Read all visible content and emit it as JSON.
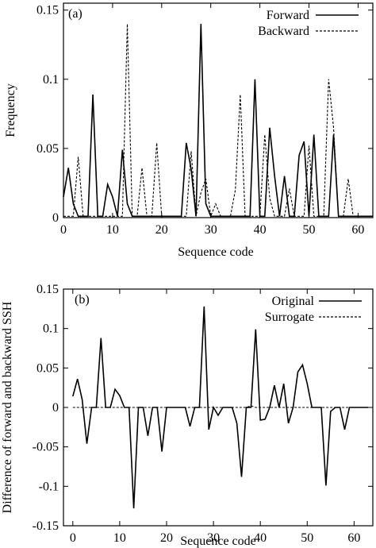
{
  "figure": {
    "panels": [
      "(a)",
      "(b)"
    ]
  },
  "chart_data": [
    {
      "type": "line",
      "panel_label": "(a)",
      "xlabel": "Sequence code",
      "ylabel": "Frequency",
      "xlim": [
        0,
        63
      ],
      "ylim": [
        0,
        0.155
      ],
      "xticks": [
        0,
        10,
        20,
        30,
        40,
        50,
        60
      ],
      "yticks": [
        0,
        0.05,
        0.1,
        0.15
      ],
      "ytick_labels": [
        "0",
        "0.05",
        "0.1",
        "0.15"
      ],
      "legend_position": "top-right",
      "x": [
        0,
        1,
        2,
        3,
        4,
        5,
        6,
        7,
        8,
        9,
        10,
        11,
        12,
        13,
        14,
        15,
        16,
        17,
        18,
        19,
        20,
        21,
        22,
        23,
        24,
        25,
        26,
        27,
        28,
        29,
        30,
        31,
        32,
        33,
        34,
        35,
        36,
        37,
        38,
        39,
        40,
        41,
        42,
        43,
        44,
        45,
        46,
        47,
        48,
        49,
        50,
        51,
        52,
        53,
        54,
        55,
        56,
        57,
        58,
        59,
        60,
        61,
        62,
        63
      ],
      "series": [
        {
          "name": "Forward",
          "style": "solid",
          "values": [
            0.015,
            0.036,
            0.01,
            0.001,
            0.001,
            0.001,
            0.089,
            0.001,
            0.001,
            0.024,
            0.015,
            0.001,
            0.049,
            0.01,
            0.001,
            0.001,
            0.001,
            0.001,
            0.001,
            0.001,
            0.001,
            0.001,
            0.001,
            0.001,
            0.001,
            0.054,
            0.035,
            0.001,
            0.14,
            0.01,
            0.001,
            0.001,
            0.001,
            0.001,
            0.001,
            0.001,
            0.001,
            0.001,
            0.001,
            0.1,
            0.001,
            0.001,
            0.065,
            0.03,
            0.001,
            0.03,
            0.001,
            0.001,
            0.045,
            0.055,
            0.001,
            0.06,
            0.001,
            0.001,
            0.001,
            0.06,
            0.001,
            0.001,
            0.001,
            0.001,
            0.001,
            0.001,
            0.001,
            0.001
          ]
        },
        {
          "name": "Backward",
          "style": "dashed",
          "values": [
            0.001,
            0.001,
            0.001,
            0.044,
            0.001,
            0.001,
            0.001,
            0.001,
            0.001,
            0.001,
            0.001,
            0.001,
            0.001,
            0.14,
            0.001,
            0.001,
            0.036,
            0.001,
            0.001,
            0.054,
            0.001,
            0.001,
            0.001,
            0.001,
            0.001,
            0.001,
            0.048,
            0.001,
            0.018,
            0.028,
            0.001,
            0.01,
            0.001,
            0.001,
            0.001,
            0.02,
            0.089,
            0.001,
            0.001,
            0.001,
            0.001,
            0.06,
            0.014,
            0.001,
            0.001,
            0.001,
            0.021,
            0.001,
            0.001,
            0.001,
            0.052,
            0.001,
            0.001,
            0.001,
            0.1,
            0.065,
            0.001,
            0.001,
            0.028,
            0.001,
            0.001,
            0.001,
            0.001,
            0.001
          ]
        }
      ]
    },
    {
      "type": "line",
      "panel_label": "(b)",
      "xlabel": "Sequence code",
      "ylabel": "Difference of forward and backward SSH",
      "xlim": [
        -2,
        64
      ],
      "ylim": [
        -0.15,
        0.15
      ],
      "xticks": [
        0,
        10,
        20,
        30,
        40,
        50,
        60
      ],
      "yticks": [
        -0.15,
        -0.1,
        -0.05,
        0,
        0.05,
        0.1,
        0.15
      ],
      "ytick_labels": [
        "-0.15",
        "-0.1",
        "-0.05",
        "0",
        "0.05",
        "0.1",
        "0.15"
      ],
      "legend_position": "top-right",
      "x": [
        0,
        1,
        2,
        3,
        4,
        5,
        6,
        7,
        8,
        9,
        10,
        11,
        12,
        13,
        14,
        15,
        16,
        17,
        18,
        19,
        20,
        21,
        22,
        23,
        24,
        25,
        26,
        27,
        28,
        29,
        30,
        31,
        32,
        33,
        34,
        35,
        36,
        37,
        38,
        39,
        40,
        41,
        42,
        43,
        44,
        45,
        46,
        47,
        48,
        49,
        50,
        51,
        52,
        53,
        54,
        55,
        56,
        57,
        58,
        59,
        60,
        61,
        62,
        63
      ],
      "series": [
        {
          "name": "Original",
          "style": "solid",
          "values": [
            0.014,
            0.036,
            0.01,
            -0.046,
            0,
            0,
            0.088,
            0,
            0,
            0.023,
            0.015,
            0,
            0,
            -0.128,
            0,
            0,
            -0.036,
            0,
            0,
            -0.056,
            0,
            0,
            0,
            0,
            0,
            -0.024,
            0,
            0,
            0.128,
            -0.028,
            0,
            -0.01,
            0,
            0,
            0,
            -0.02,
            -0.088,
            0,
            0,
            0.099,
            -0.016,
            -0.015,
            0,
            0.028,
            0,
            0.03,
            -0.02,
            0,
            0.045,
            0.054,
            0.03,
            0,
            0,
            0,
            -0.099,
            -0.005,
            0,
            0,
            -0.028,
            0,
            0,
            0,
            0,
            0
          ]
        },
        {
          "name": "Surrogate",
          "style": "dashed",
          "values": [
            0,
            0,
            0,
            0,
            0,
            0,
            0,
            0,
            0,
            0,
            0,
            0,
            0,
            0,
            0,
            0,
            0,
            0,
            0,
            0,
            0,
            0,
            0,
            0,
            0,
            0,
            0,
            0,
            0,
            0,
            0,
            0,
            0,
            0,
            0,
            0,
            0,
            0,
            0.002,
            0,
            0,
            0,
            0,
            0,
            0,
            0,
            0,
            0,
            0,
            0,
            0,
            0,
            0,
            0,
            0,
            0,
            0,
            0,
            0,
            0,
            0,
            0,
            0,
            0
          ]
        }
      ]
    }
  ]
}
